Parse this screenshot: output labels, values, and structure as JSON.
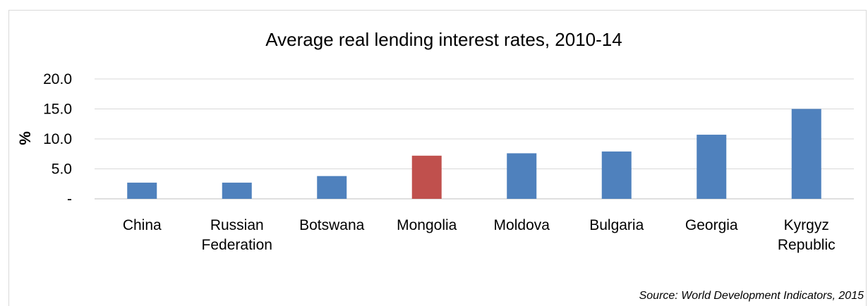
{
  "chart_data": {
    "type": "bar",
    "title": "Average real lending interest rates, 2010-14",
    "ylabel": "%",
    "xlabel": "",
    "categories": [
      [
        "China"
      ],
      [
        "Russian",
        "Federation"
      ],
      [
        "Botswana"
      ],
      [
        "Mongolia"
      ],
      [
        "Moldova"
      ],
      [
        "Bulgaria"
      ],
      [
        "Georgia"
      ],
      [
        "Kyrgyz",
        "Republic"
      ]
    ],
    "values": [
      2.7,
      2.7,
      3.8,
      7.2,
      7.6,
      7.9,
      10.7,
      15.0
    ],
    "highlight_index": 3,
    "ylim": [
      0,
      20
    ],
    "yticks": [
      {
        "value": 0,
        "label": "-"
      },
      {
        "value": 5,
        "label": "5.0"
      },
      {
        "value": 10,
        "label": "10.0"
      },
      {
        "value": 15,
        "label": "15.0"
      },
      {
        "value": 20,
        "label": "20.0"
      }
    ],
    "grid": true,
    "legend": "none",
    "colors": {
      "bar": "#4f81bd",
      "highlight": "#c0504d",
      "grid": "#d9d9d9"
    }
  },
  "source_note": "Source: World Development Indicators, 2015"
}
